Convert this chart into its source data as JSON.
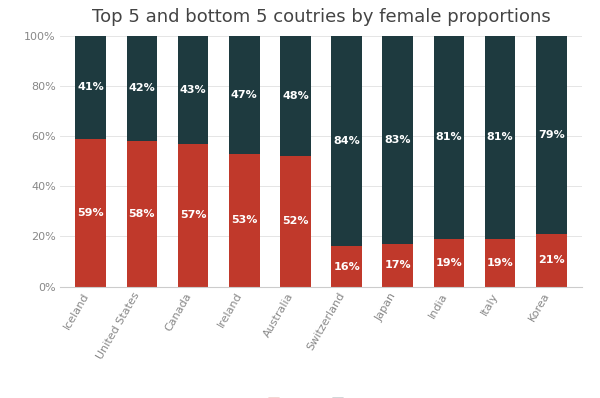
{
  "title": "Top 5 and bottom 5 coutries by female proportions",
  "categories": [
    "Iceland",
    "United States",
    "Canada",
    "Ireland",
    "Australia",
    "Switzerland",
    "Japan",
    "India",
    "Italy",
    "Korea"
  ],
  "female": [
    59,
    58,
    57,
    53,
    52,
    16,
    17,
    19,
    19,
    21
  ],
  "male": [
    41,
    42,
    43,
    47,
    48,
    84,
    83,
    81,
    81,
    79
  ],
  "female_color": "#c0392b",
  "male_color": "#1e3a3f",
  "background_color": "#ffffff",
  "title_fontsize": 13,
  "tick_fontsize": 8,
  "label_fontsize": 8,
  "bar_width": 0.6,
  "yticks": [
    0,
    20,
    40,
    60,
    80,
    100
  ],
  "ytick_labels": [
    "0%",
    "20%",
    "40%",
    "60%",
    "80%",
    "100%"
  ]
}
